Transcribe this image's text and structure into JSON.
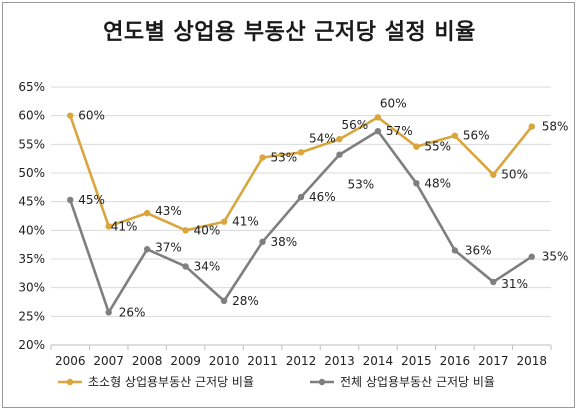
{
  "chart_data": {
    "type": "line",
    "title": "연도별 상업용 부동산 근저당 설정 비율",
    "xlabel": "",
    "ylabel": "",
    "categories": [
      "2006",
      "2007",
      "2008",
      "2009",
      "2010",
      "2011",
      "2012",
      "2013",
      "2014",
      "2015",
      "2016",
      "2017",
      "2018"
    ],
    "ylim": [
      0.2,
      0.65
    ],
    "yticks": [
      "20%",
      "25%",
      "30%",
      "35%",
      "40%",
      "45%",
      "50%",
      "55%",
      "60%",
      "65%"
    ],
    "grid": true,
    "legend_position": "bottom",
    "series": [
      {
        "name": "초소형 상업용부동산 근저당 비율",
        "color": "#D9A53C",
        "values": [
          0.6,
          0.407,
          0.43,
          0.4,
          0.415,
          0.527,
          0.536,
          0.559,
          0.597,
          0.546,
          0.565,
          0.497,
          0.581
        ],
        "labels": [
          "60%",
          "41%",
          "43%",
          "40%",
          "41%",
          "53%",
          "54%",
          "56%",
          "60%",
          "55%",
          "56%",
          "50%",
          "58%"
        ]
      },
      {
        "name": "전체 상업용부동산 근저당 비율",
        "color": "#7F7F7F",
        "values": [
          0.453,
          0.257,
          0.367,
          0.337,
          0.277,
          0.38,
          0.458,
          0.532,
          0.573,
          0.482,
          0.365,
          0.31,
          0.354
        ],
        "labels": [
          "45%",
          "26%",
          "37%",
          "34%",
          "28%",
          "38%",
          "46%",
          "53%",
          "57%",
          "48%",
          "36%",
          "31%",
          "35%"
        ]
      }
    ]
  }
}
